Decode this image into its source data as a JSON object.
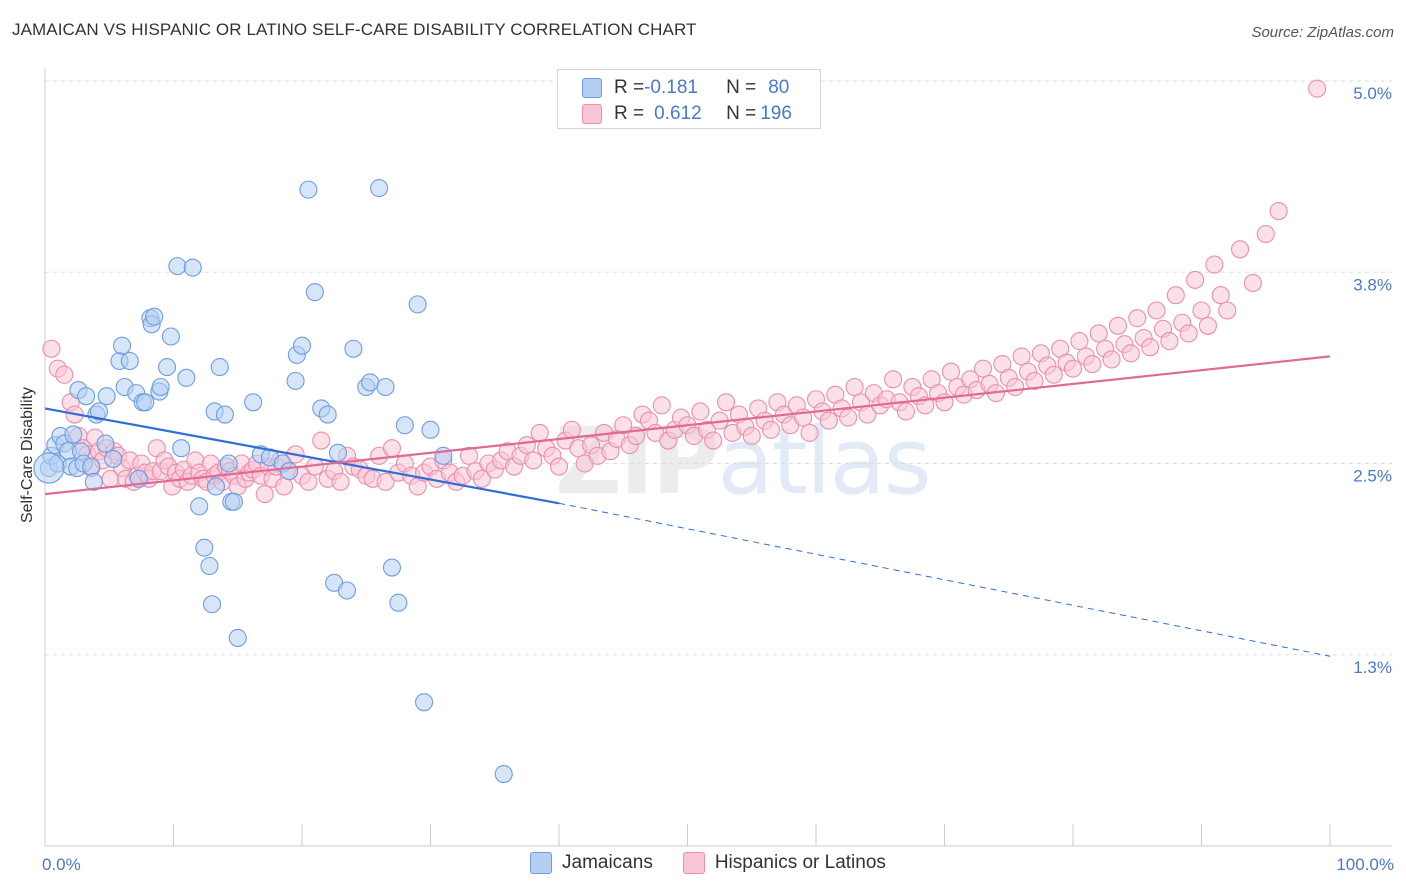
{
  "title": "JAMAICAN VS HISPANIC OR LATINO SELF-CARE DISABILITY CORRELATION CHART",
  "source": "Source: ZipAtlas.com",
  "watermark": {
    "zip": "ZIP",
    "atlas": "atlas"
  },
  "colors": {
    "blue_fill": "#b4cff2",
    "blue_stroke": "#6d9de0",
    "blue_line": "#2f6ed6",
    "pink_fill": "#f9c6d6",
    "pink_stroke": "#ea8fae",
    "pink_line": "#e06a92",
    "axis_label": "#4a79c9",
    "grid": "#dddddd"
  },
  "legend": {
    "rows": [
      {
        "r_label": "R = ",
        "r_value": "-0.181",
        "n_label": "N = ",
        "n_value": "80"
      },
      {
        "r_label": "R = ",
        "r_value": "0.612",
        "n_label": "N = ",
        "n_value": "196"
      }
    ]
  },
  "bottom_legend": [
    "Jamaicans",
    "Hispanics or Latinos"
  ],
  "chart_data": {
    "type": "scatter",
    "title": "JAMAICAN VS HISPANIC OR LATINO SELF-CARE DISABILITY CORRELATION CHART",
    "xlabel": "",
    "ylabel": "Self-Care Disability",
    "xlim": [
      0,
      100
    ],
    "ylim": [
      0,
      5.2
    ],
    "x_tick_labels": [
      "0.0%",
      "100.0%"
    ],
    "y_ticks": [
      1.25,
      2.5,
      3.75,
      5.0
    ],
    "y_tick_labels": [
      "1.3%",
      "2.5%",
      "3.8%",
      "5.0%"
    ],
    "series": [
      {
        "name": "Jamaicans",
        "r": -0.181,
        "n": 80,
        "trend": {
          "x0": 0,
          "y0": 2.86,
          "x1": 40,
          "y1": 2.24,
          "dash_x1": 100,
          "dash_y1": 1.24
        },
        "points": [
          [
            0.3,
            2.47
          ],
          [
            0.5,
            2.55
          ],
          [
            0.8,
            2.62
          ],
          [
            1.0,
            2.5
          ],
          [
            1.2,
            2.68
          ],
          [
            1.5,
            2.63
          ],
          [
            1.8,
            2.58
          ],
          [
            2.0,
            2.48
          ],
          [
            2.2,
            2.69
          ],
          [
            2.5,
            2.47
          ],
          [
            2.6,
            2.98
          ],
          [
            2.8,
            2.58
          ],
          [
            3.0,
            2.5
          ],
          [
            3.2,
            2.94
          ],
          [
            3.6,
            2.48
          ],
          [
            3.8,
            2.38
          ],
          [
            4.0,
            2.82
          ],
          [
            4.2,
            2.84
          ],
          [
            4.7,
            2.63
          ],
          [
            4.8,
            2.94
          ],
          [
            5.3,
            2.53
          ],
          [
            5.8,
            3.17
          ],
          [
            6.0,
            3.27
          ],
          [
            6.2,
            3.0
          ],
          [
            6.6,
            3.17
          ],
          [
            7.1,
            2.96
          ],
          [
            7.3,
            2.4
          ],
          [
            7.6,
            2.9
          ],
          [
            7.8,
            2.9
          ],
          [
            8.2,
            3.45
          ],
          [
            8.3,
            3.41
          ],
          [
            8.5,
            3.46
          ],
          [
            8.9,
            2.97
          ],
          [
            9.0,
            3.0
          ],
          [
            9.5,
            3.13
          ],
          [
            9.8,
            3.33
          ],
          [
            10.3,
            3.79
          ],
          [
            10.6,
            2.6
          ],
          [
            11.0,
            3.06
          ],
          [
            11.5,
            3.78
          ],
          [
            12.0,
            2.22
          ],
          [
            12.4,
            1.95
          ],
          [
            12.8,
            1.83
          ],
          [
            13.0,
            1.58
          ],
          [
            13.2,
            2.84
          ],
          [
            13.3,
            2.35
          ],
          [
            13.6,
            3.13
          ],
          [
            14.0,
            2.82
          ],
          [
            14.3,
            2.5
          ],
          [
            14.5,
            2.25
          ],
          [
            14.7,
            2.25
          ],
          [
            15.0,
            1.36
          ],
          [
            16.2,
            2.9
          ],
          [
            16.8,
            2.56
          ],
          [
            17.5,
            2.54
          ],
          [
            18.5,
            2.5
          ],
          [
            19.0,
            2.45
          ],
          [
            19.5,
            3.04
          ],
          [
            19.6,
            3.21
          ],
          [
            20.0,
            3.27
          ],
          [
            20.5,
            4.29
          ],
          [
            21.0,
            3.62
          ],
          [
            21.5,
            2.86
          ],
          [
            22.0,
            2.82
          ],
          [
            22.5,
            1.72
          ],
          [
            22.8,
            2.57
          ],
          [
            23.5,
            1.67
          ],
          [
            24.0,
            3.25
          ],
          [
            25.0,
            3.0
          ],
          [
            25.3,
            3.03
          ],
          [
            26.0,
            4.3
          ],
          [
            26.5,
            3.0
          ],
          [
            27.0,
            1.82
          ],
          [
            27.5,
            1.59
          ],
          [
            28.0,
            2.75
          ],
          [
            29.0,
            3.54
          ],
          [
            29.5,
            0.94
          ],
          [
            30.0,
            2.72
          ],
          [
            31.0,
            2.55
          ],
          [
            35.7,
            0.47
          ]
        ]
      },
      {
        "name": "Hispanics or Latinos",
        "r": 0.612,
        "n": 196,
        "trend": {
          "x0": 0,
          "y0": 2.3,
          "x1": 100,
          "y1": 3.2
        },
        "points": [
          [
            0.5,
            3.25
          ],
          [
            1.0,
            3.12
          ],
          [
            1.5,
            3.08
          ],
          [
            2.0,
            2.9
          ],
          [
            2.3,
            2.82
          ],
          [
            2.6,
            2.68
          ],
          [
            3.0,
            2.6
          ],
          [
            3.3,
            2.56
          ],
          [
            3.6,
            2.47
          ],
          [
            3.9,
            2.67
          ],
          [
            4.2,
            2.58
          ],
          [
            4.5,
            2.52
          ],
          [
            4.8,
            2.6
          ],
          [
            5.1,
            2.4
          ],
          [
            5.4,
            2.58
          ],
          [
            5.7,
            2.55
          ],
          [
            6.0,
            2.47
          ],
          [
            6.3,
            2.4
          ],
          [
            6.6,
            2.52
          ],
          [
            6.9,
            2.38
          ],
          [
            7.2,
            2.42
          ],
          [
            7.5,
            2.5
          ],
          [
            7.8,
            2.44
          ],
          [
            8.1,
            2.4
          ],
          [
            8.4,
            2.45
          ],
          [
            8.7,
            2.6
          ],
          [
            9.0,
            2.45
          ],
          [
            9.3,
            2.52
          ],
          [
            9.6,
            2.48
          ],
          [
            9.9,
            2.35
          ],
          [
            10.2,
            2.44
          ],
          [
            10.5,
            2.4
          ],
          [
            10.8,
            2.46
          ],
          [
            11.1,
            2.38
          ],
          [
            11.4,
            2.42
          ],
          [
            11.7,
            2.52
          ],
          [
            12.0,
            2.44
          ],
          [
            12.3,
            2.4
          ],
          [
            12.6,
            2.38
          ],
          [
            12.9,
            2.5
          ],
          [
            13.2,
            2.42
          ],
          [
            13.5,
            2.44
          ],
          [
            13.8,
            2.38
          ],
          [
            14.1,
            2.48
          ],
          [
            14.4,
            2.45
          ],
          [
            14.7,
            2.42
          ],
          [
            15.0,
            2.35
          ],
          [
            15.3,
            2.5
          ],
          [
            15.6,
            2.4
          ],
          [
            15.9,
            2.44
          ],
          [
            16.2,
            2.46
          ],
          [
            16.5,
            2.5
          ],
          [
            16.8,
            2.42
          ],
          [
            17.1,
            2.3
          ],
          [
            17.4,
            2.48
          ],
          [
            17.7,
            2.4
          ],
          [
            18.0,
            2.48
          ],
          [
            18.3,
            2.52
          ],
          [
            18.6,
            2.35
          ],
          [
            19.0,
            2.45
          ],
          [
            19.5,
            2.56
          ],
          [
            20.0,
            2.42
          ],
          [
            20.5,
            2.38
          ],
          [
            21.0,
            2.48
          ],
          [
            21.5,
            2.65
          ],
          [
            22.0,
            2.4
          ],
          [
            22.5,
            2.45
          ],
          [
            23.0,
            2.38
          ],
          [
            23.5,
            2.55
          ],
          [
            24.0,
            2.48
          ],
          [
            24.5,
            2.46
          ],
          [
            25.0,
            2.42
          ],
          [
            25.5,
            2.4
          ],
          [
            26.0,
            2.55
          ],
          [
            26.5,
            2.38
          ],
          [
            27.0,
            2.6
          ],
          [
            27.5,
            2.44
          ],
          [
            28.0,
            2.5
          ],
          [
            28.5,
            2.42
          ],
          [
            29.0,
            2.35
          ],
          [
            29.5,
            2.44
          ],
          [
            30.0,
            2.48
          ],
          [
            30.5,
            2.4
          ],
          [
            31.0,
            2.52
          ],
          [
            31.5,
            2.44
          ],
          [
            32.0,
            2.38
          ],
          [
            32.5,
            2.42
          ],
          [
            33.0,
            2.55
          ],
          [
            33.5,
            2.45
          ],
          [
            34.0,
            2.4
          ],
          [
            34.5,
            2.5
          ],
          [
            35.0,
            2.46
          ],
          [
            35.5,
            2.52
          ],
          [
            36.0,
            2.58
          ],
          [
            36.5,
            2.48
          ],
          [
            37.0,
            2.55
          ],
          [
            37.5,
            2.62
          ],
          [
            38.0,
            2.52
          ],
          [
            38.5,
            2.7
          ],
          [
            39.0,
            2.6
          ],
          [
            39.5,
            2.55
          ],
          [
            40.0,
            2.48
          ],
          [
            40.5,
            2.65
          ],
          [
            41.0,
            2.72
          ],
          [
            41.5,
            2.6
          ],
          [
            42.0,
            2.5
          ],
          [
            42.5,
            2.62
          ],
          [
            43.0,
            2.55
          ],
          [
            43.5,
            2.7
          ],
          [
            44.0,
            2.58
          ],
          [
            44.5,
            2.66
          ],
          [
            45.0,
            2.75
          ],
          [
            45.5,
            2.62
          ],
          [
            46.0,
            2.68
          ],
          [
            46.5,
            2.82
          ],
          [
            47.0,
            2.78
          ],
          [
            47.5,
            2.7
          ],
          [
            48.0,
            2.88
          ],
          [
            48.5,
            2.65
          ],
          [
            49.0,
            2.72
          ],
          [
            49.5,
            2.8
          ],
          [
            50.0,
            2.75
          ],
          [
            50.5,
            2.68
          ],
          [
            51.0,
            2.84
          ],
          [
            51.5,
            2.72
          ],
          [
            52.0,
            2.65
          ],
          [
            52.5,
            2.78
          ],
          [
            53.0,
            2.9
          ],
          [
            53.5,
            2.7
          ],
          [
            54.0,
            2.82
          ],
          [
            54.5,
            2.74
          ],
          [
            55.0,
            2.68
          ],
          [
            55.5,
            2.86
          ],
          [
            56.0,
            2.78
          ],
          [
            56.5,
            2.72
          ],
          [
            57.0,
            2.9
          ],
          [
            57.5,
            2.82
          ],
          [
            58.0,
            2.75
          ],
          [
            58.5,
            2.88
          ],
          [
            59.0,
            2.8
          ],
          [
            59.5,
            2.7
          ],
          [
            60.0,
            2.92
          ],
          [
            60.5,
            2.84
          ],
          [
            61.0,
            2.78
          ],
          [
            61.5,
            2.95
          ],
          [
            62.0,
            2.86
          ],
          [
            62.5,
            2.8
          ],
          [
            63.0,
            3.0
          ],
          [
            63.5,
            2.9
          ],
          [
            64.0,
            2.82
          ],
          [
            64.5,
            2.96
          ],
          [
            65.0,
            2.88
          ],
          [
            65.5,
            2.92
          ],
          [
            66.0,
            3.05
          ],
          [
            66.5,
            2.9
          ],
          [
            67.0,
            2.84
          ],
          [
            67.5,
            3.0
          ],
          [
            68.0,
            2.94
          ],
          [
            68.5,
            2.88
          ],
          [
            69.0,
            3.05
          ],
          [
            69.5,
            2.96
          ],
          [
            70.0,
            2.9
          ],
          [
            70.5,
            3.1
          ],
          [
            71.0,
            3.0
          ],
          [
            71.5,
            2.95
          ],
          [
            72.0,
            3.05
          ],
          [
            72.5,
            2.98
          ],
          [
            73.0,
            3.12
          ],
          [
            73.5,
            3.02
          ],
          [
            74.0,
            2.96
          ],
          [
            74.5,
            3.15
          ],
          [
            75.0,
            3.06
          ],
          [
            75.5,
            3.0
          ],
          [
            76.0,
            3.2
          ],
          [
            76.5,
            3.1
          ],
          [
            77.0,
            3.04
          ],
          [
            77.5,
            3.22
          ],
          [
            78.0,
            3.14
          ],
          [
            78.5,
            3.08
          ],
          [
            79.0,
            3.25
          ],
          [
            79.5,
            3.16
          ],
          [
            80.0,
            3.12
          ],
          [
            80.5,
            3.3
          ],
          [
            81.0,
            3.2
          ],
          [
            81.5,
            3.15
          ],
          [
            82.0,
            3.35
          ],
          [
            82.5,
            3.25
          ],
          [
            83.0,
            3.18
          ],
          [
            83.5,
            3.4
          ],
          [
            84.0,
            3.28
          ],
          [
            84.5,
            3.22
          ],
          [
            85.0,
            3.45
          ],
          [
            85.5,
            3.32
          ],
          [
            86.0,
            3.26
          ],
          [
            86.5,
            3.5
          ],
          [
            87.0,
            3.38
          ],
          [
            87.5,
            3.3
          ],
          [
            88.0,
            3.6
          ],
          [
            88.5,
            3.42
          ],
          [
            89.0,
            3.35
          ],
          [
            89.5,
            3.7
          ],
          [
            90.0,
            3.5
          ],
          [
            90.5,
            3.4
          ],
          [
            91.0,
            3.8
          ],
          [
            91.5,
            3.6
          ],
          [
            92.0,
            3.5
          ],
          [
            93.0,
            3.9
          ],
          [
            94.0,
            3.68
          ],
          [
            95.0,
            4.0
          ],
          [
            96.0,
            4.15
          ],
          [
            99.0,
            4.95
          ]
        ]
      }
    ]
  }
}
